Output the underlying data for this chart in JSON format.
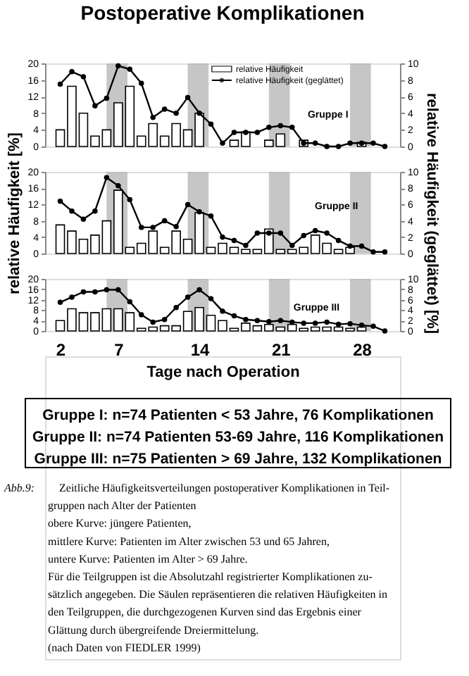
{
  "chart_data": [
    {
      "type": "bar",
      "title": "Postoperative Komplikationen",
      "x": [
        2,
        3,
        4,
        5,
        6,
        7,
        8,
        9,
        10,
        11,
        12,
        13,
        14,
        15,
        16,
        17,
        18,
        19,
        20,
        21,
        22,
        23,
        24,
        25,
        26,
        27,
        28,
        29,
        30
      ],
      "xlim": [
        1.3,
        30.7
      ],
      "ylim": [
        0,
        20
      ],
      "yticks": [
        0,
        4,
        8,
        12,
        16,
        20
      ],
      "y2lim": [
        0,
        10
      ],
      "y2ticks": [
        0,
        2,
        4,
        6,
        8,
        10
      ],
      "tick_labels": "y",
      "legend": "top",
      "marker": "circle",
      "line_style": "solid",
      "annotations": [
        "Gruppe I"
      ],
      "bands": [
        {
          "axis": "x",
          "from": 6,
          "to": 7.8,
          "color": "#b8b8b8"
        },
        {
          "axis": "x",
          "from": 13,
          "to": 14.8,
          "color": "#b8b8b8"
        },
        {
          "axis": "x",
          "from": 20,
          "to": 21.8,
          "color": "#b8b8b8"
        },
        {
          "axis": "x",
          "from": 27,
          "to": 28.8,
          "color": "#b8b8b8"
        }
      ],
      "series": [
        {
          "name": "relative Häufigkeit",
          "type": "bar",
          "color": "#ffffff",
          "values": [
            4,
            14.5,
            8,
            2.5,
            4,
            10.5,
            14.5,
            2.5,
            5.5,
            2.5,
            5.5,
            4,
            8,
            null,
            null,
            1.5,
            3.5,
            null,
            1.5,
            3,
            null,
            1.5,
            null,
            null,
            null,
            null,
            1,
            null,
            null
          ]
        },
        {
          "name": "relative Häufigkeit (geglättet)",
          "type": "line",
          "axis": "y2",
          "color": "#000000",
          "values": [
            7.5,
            9.0,
            8.4,
            4.9,
            5.8,
            9.7,
            9.3,
            7.6,
            3.5,
            4.5,
            4.0,
            5.9,
            4.0,
            2.7,
            0.4,
            1.7,
            1.7,
            1.7,
            2.3,
            2.5,
            2.3,
            0.4,
            0.4,
            0,
            0,
            0.4,
            0.4,
            0.4,
            0
          ]
        }
      ]
    },
    {
      "type": "bar",
      "x": [
        2,
        3,
        4,
        5,
        6,
        7,
        8,
        9,
        10,
        11,
        12,
        13,
        14,
        15,
        16,
        17,
        18,
        19,
        20,
        21,
        22,
        23,
        24,
        25,
        26,
        27,
        28,
        29,
        30
      ],
      "xlim": [
        1.3,
        30.7
      ],
      "ylim": [
        0,
        20
      ],
      "yticks": [
        0,
        4,
        8,
        12,
        16,
        20
      ],
      "y2lim": [
        0,
        10
      ],
      "y2ticks": [
        0,
        2,
        4,
        6,
        8,
        10
      ],
      "tick_labels": "y",
      "ylabel": "relative Häufigkeit [%]",
      "y2label": "relative Häufigkeit (geglättet) [%]",
      "marker": "circle",
      "line_style": "solid",
      "annotations": [
        "Gruppe II"
      ],
      "bands": [
        {
          "axis": "x",
          "from": 6,
          "to": 7.8,
          "color": "#b8b8b8"
        },
        {
          "axis": "x",
          "from": 13,
          "to": 14.8,
          "color": "#b8b8b8"
        },
        {
          "axis": "x",
          "from": 20,
          "to": 21.8,
          "color": "#b8b8b8"
        },
        {
          "axis": "x",
          "from": 27,
          "to": 28.8,
          "color": "#b8b8b8"
        }
      ],
      "series": [
        {
          "type": "bar",
          "color": "#ffffff",
          "values": [
            7,
            5.5,
            3.5,
            4.5,
            8,
            15.5,
            1.5,
            2.5,
            5.5,
            1.5,
            5.5,
            3.5,
            10,
            1.5,
            2.5,
            1.5,
            1,
            1,
            6,
            1,
            1,
            1.5,
            4.5,
            2.5,
            1,
            1.5,
            null,
            null,
            null
          ]
        },
        {
          "type": "line",
          "axis": "y2",
          "color": "#000000",
          "values": [
            6.4,
            5.2,
            4.2,
            5.2,
            9.3,
            8.3,
            6.6,
            3.2,
            3.2,
            4.0,
            3.3,
            6.0,
            5.1,
            4.6,
            2.0,
            1.6,
            1.0,
            2.5,
            2.5,
            2.5,
            1.0,
            2.2,
            2.8,
            2.5,
            1.6,
            0.9,
            0.9,
            0.2,
            0.2
          ]
        }
      ]
    },
    {
      "type": "bar",
      "x": [
        2,
        3,
        4,
        5,
        6,
        7,
        8,
        9,
        10,
        11,
        12,
        13,
        14,
        15,
        16,
        17,
        18,
        19,
        20,
        21,
        22,
        23,
        24,
        25,
        26,
        27,
        28,
        29,
        30
      ],
      "xlim": [
        1.3,
        30.7
      ],
      "xticks": [
        2,
        7,
        14,
        21,
        28
      ],
      "ylim": [
        0,
        20
      ],
      "yticks": [
        0,
        4,
        8,
        12,
        16,
        20
      ],
      "y2lim": [
        0,
        10
      ],
      "y2ticks": [
        0,
        2,
        4,
        6,
        8,
        10
      ],
      "xlabel": "Tage nach Operation",
      "marker": "circle",
      "line_style": "solid",
      "annotations": [
        "Gruppe III"
      ],
      "bands": [
        {
          "axis": "x",
          "from": 6,
          "to": 7.8,
          "color": "#b8b8b8"
        },
        {
          "axis": "x",
          "from": 13,
          "to": 14.8,
          "color": "#b8b8b8"
        },
        {
          "axis": "x",
          "from": 20,
          "to": 21.8,
          "color": "#b8b8b8"
        },
        {
          "axis": "x",
          "from": 27,
          "to": 28.8,
          "color": "#b8b8b8"
        }
      ],
      "series": [
        {
          "type": "bar",
          "color": "#ffffff",
          "values": [
            4,
            8.5,
            7,
            7,
            8.5,
            8.5,
            7,
            1,
            1.5,
            2,
            2,
            7.5,
            9,
            6,
            4,
            1,
            3,
            2,
            2.5,
            1.5,
            2.5,
            1,
            1.5,
            1.5,
            1.5,
            1,
            1.5,
            null,
            null
          ]
        },
        {
          "type": "line",
          "axis": "y2",
          "color": "#000000",
          "values": [
            5.5,
            6.5,
            7.5,
            7.5,
            7.9,
            7.9,
            5.6,
            3.1,
            1.7,
            2.2,
            4.5,
            6.5,
            7.9,
            6.2,
            3.8,
            2.9,
            2.2,
            2.0,
            1.8,
            2.0,
            1.7,
            1.5,
            1.5,
            1.7,
            1.3,
            1.4,
            1.1,
            0.9,
            0
          ]
        }
      ]
    },
    {
      "type": "other",
      "annotations": [
        "Gruppe I: n=74 Patienten < 53 Jahre, 76 Komplikationen",
        "Gruppe II: n=74 Patienten 53-69 Jahre, 116 Komplikationen",
        "Gruppe III: n=75 Patienten > 69 Jahre, 132 Komplikationen",
        "Abb.9:",
        "Zeitliche Häufigkeitsverteilungen postoperativer Komplikationen in Teil-",
        "gruppen nach Alter der Patienten",
        "obere Kurve: jüngere Patienten,",
        "mittlere Kurve: Patienten im Alter zwischen 53 und 65 Jahren,",
        "untere Kurve: Patienten im Alter > 69 Jahre.",
        "Für die Teilgruppen ist die Absolutzahl registrierter Komplikationen zu-",
        "sätzlich angegeben. Die Säulen repräsentieren die relativen Häufigkeiten in",
        "den Teilgruppen, die durchgezogenen Kurven sind das Ergebnis einer",
        "Glättung durch übergreifende Dreiermittelung.",
        "(nach Daten von FIEDLER 1999)"
      ]
    }
  ]
}
